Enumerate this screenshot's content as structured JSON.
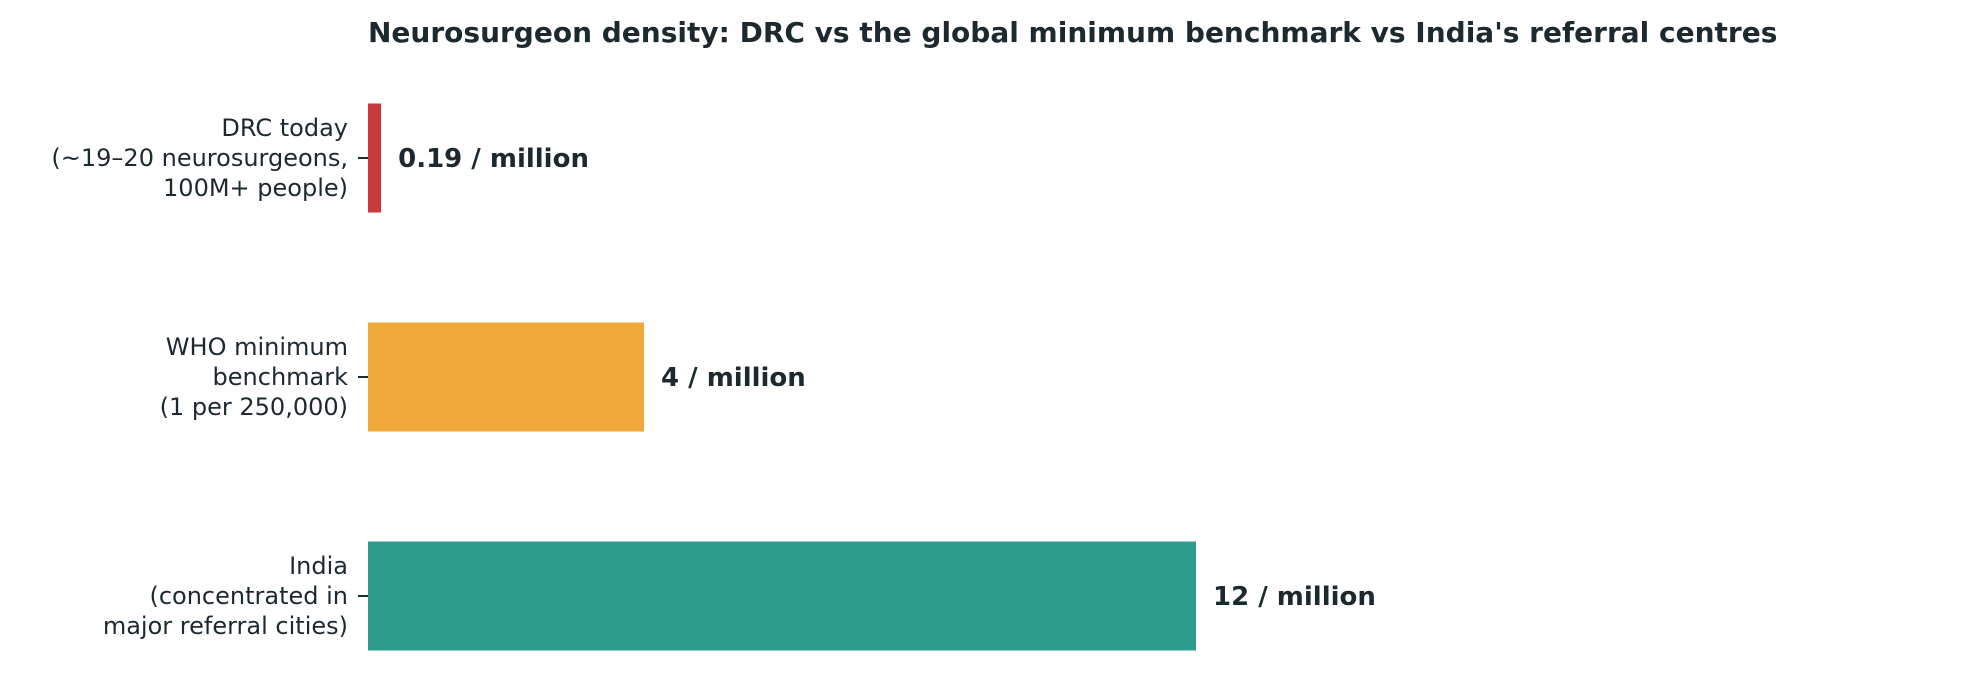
{
  "chart_data": {
    "type": "bar",
    "orientation": "horizontal",
    "title": "Neurosurgeon density: DRC vs the global minimum benchmark vs India's referral centres",
    "xlabel": "",
    "ylabel": "",
    "xlim": [
      0,
      16.5
    ],
    "grid": false,
    "categories": [
      [
        "DRC today",
        "(~19–20 neurosurgeons,",
        "100M+ people)"
      ],
      [
        "WHO minimum",
        "benchmark",
        "(1 per 250,000)"
      ],
      [
        "India",
        "(concentrated in",
        "major referral cities)"
      ]
    ],
    "values": [
      0.19,
      4,
      12
    ],
    "value_labels": [
      "0.19 / million",
      "4 / million",
      "12 / million"
    ],
    "colors": [
      "#c9383d",
      "#f0a83b",
      "#2d9b8e"
    ]
  }
}
